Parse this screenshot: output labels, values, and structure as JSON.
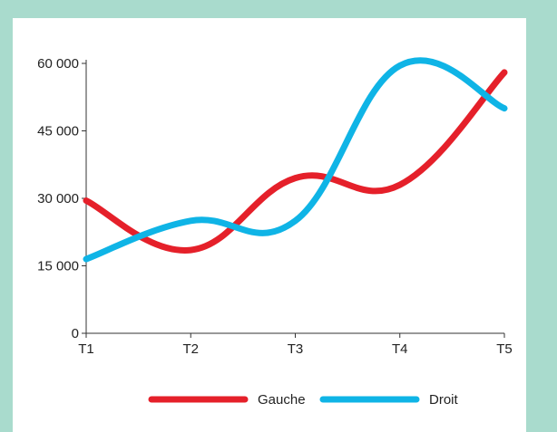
{
  "colors": {
    "frame": "#a9dbcd",
    "panel": "#ffffff",
    "axis": "#333333",
    "series_gauche": "#e5202a",
    "series_droit": "#0fb4e6"
  },
  "chart_data": {
    "type": "line",
    "title": "",
    "xlabel": "",
    "ylabel": "",
    "categories": [
      "T1",
      "T2",
      "T3",
      "T4",
      "T5"
    ],
    "ylim": [
      0,
      60000
    ],
    "yticks": [
      0,
      15000,
      30000,
      45000,
      60000
    ],
    "ytick_labels": [
      "0",
      "15 000",
      "30 000",
      "45 000",
      "60 000"
    ],
    "grid": false,
    "legend_position": "bottom",
    "series": [
      {
        "name": "Gauche",
        "color": "#e5202a",
        "values": [
          29500,
          18500,
          34500,
          33000,
          58000
        ]
      },
      {
        "name": "Droit",
        "color": "#0fb4e6",
        "values": [
          16500,
          25000,
          25000,
          59500,
          50000
        ]
      }
    ]
  }
}
